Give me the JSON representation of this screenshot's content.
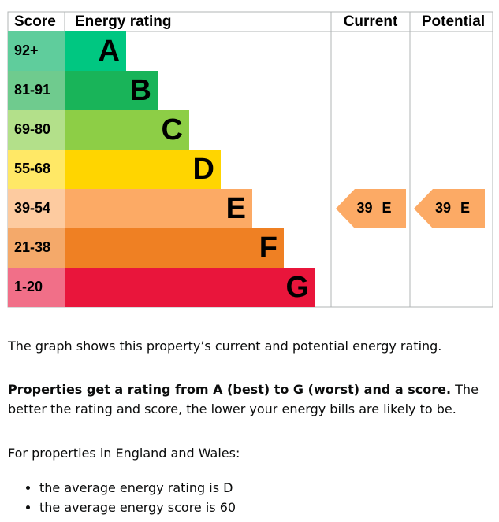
{
  "header": {
    "score": "Score",
    "energy_rating": "Energy rating",
    "current": "Current",
    "potential": "Potential"
  },
  "bands": [
    {
      "score": "92+",
      "letter": "A",
      "bar_color": "#00c781",
      "cell_color": "#5fcd9c"
    },
    {
      "score": "81-91",
      "letter": "B",
      "bar_color": "#19b459",
      "cell_color": "#6fcb8e"
    },
    {
      "score": "69-80",
      "letter": "C",
      "bar_color": "#8dce46",
      "cell_color": "#b3e08a"
    },
    {
      "score": "55-68",
      "letter": "D",
      "bar_color": "#ffd500",
      "cell_color": "#ffe866"
    },
    {
      "score": "39-54",
      "letter": "E",
      "bar_color": "#fcaa65",
      "cell_color": "#fdcba0"
    },
    {
      "score": "21-38",
      "letter": "F",
      "bar_color": "#ef8023",
      "cell_color": "#f4a96a"
    },
    {
      "score": "1-20",
      "letter": "G",
      "bar_color": "#e9153b",
      "cell_color": "#f16f88"
    }
  ],
  "current": {
    "score": 39,
    "rating": "E"
  },
  "potential": {
    "score": 39,
    "rating": "E"
  },
  "text": {
    "intro": "The graph shows this property’s current and potential energy rating.",
    "rating_bold": "Properties get a rating from A (best) to G (worst) and a score.",
    "rating_rest": "The better the rating and score, the lower your energy bills are likely to be.",
    "region": "For properties in England and Wales:",
    "list": [
      "the average energy rating is D",
      "the average energy score is 60"
    ]
  }
}
